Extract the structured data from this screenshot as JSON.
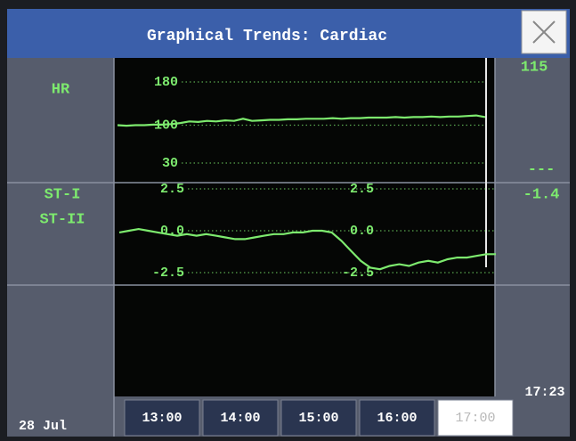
{
  "header": {
    "title": "Graphical Trends: Cardiac"
  },
  "rows": [
    {
      "labels": [
        "HR"
      ],
      "readouts": [
        "115"
      ]
    },
    {
      "labels": [
        "ST-I",
        "ST-II"
      ],
      "readouts": [
        "---",
        "-1.4"
      ]
    }
  ],
  "hr_trend": {
    "type": "line",
    "color": "#7dea6e",
    "ylim": [
      30,
      180
    ],
    "yticks": [
      180,
      100,
      30
    ],
    "values": [
      100,
      99,
      100,
      100,
      101,
      101,
      102,
      104,
      107,
      106,
      108,
      107,
      109,
      108,
      112,
      108,
      109,
      110,
      110,
      111,
      111,
      112,
      112,
      112,
      113,
      112,
      113,
      113,
      114,
      114,
      114,
      115,
      114,
      115,
      115,
      116,
      115,
      116,
      116,
      117,
      118,
      115
    ]
  },
  "st_trend": {
    "type": "line",
    "color": "#7dea6e",
    "ylim": [
      -2.5,
      2.5
    ],
    "yticks": [
      2.5,
      {
        "value": 0,
        "label": "0.0"
      },
      -2.5
    ],
    "values": [
      -0.1,
      0.0,
      0.1,
      0.0,
      -0.1,
      -0.2,
      -0.3,
      -0.2,
      -0.3,
      -0.2,
      -0.3,
      -0.4,
      -0.5,
      -0.5,
      -0.4,
      -0.3,
      -0.2,
      -0.2,
      -0.1,
      -0.1,
      0.0,
      0.0,
      -0.1,
      -0.6,
      -1.2,
      -1.8,
      -2.2,
      -2.3,
      -2.1,
      -2.0,
      -2.1,
      -1.9,
      -1.8,
      -1.9,
      -1.7,
      -1.6,
      -1.6,
      -1.5,
      -1.4,
      -1.4
    ]
  },
  "date": "28 Jul",
  "time_buttons": [
    {
      "label": "13:00",
      "selected": false
    },
    {
      "label": "14:00",
      "selected": false
    },
    {
      "label": "15:00",
      "selected": false
    },
    {
      "label": "16:00",
      "selected": false
    },
    {
      "label": "17:00",
      "selected": true
    }
  ],
  "current_time": "17:23"
}
